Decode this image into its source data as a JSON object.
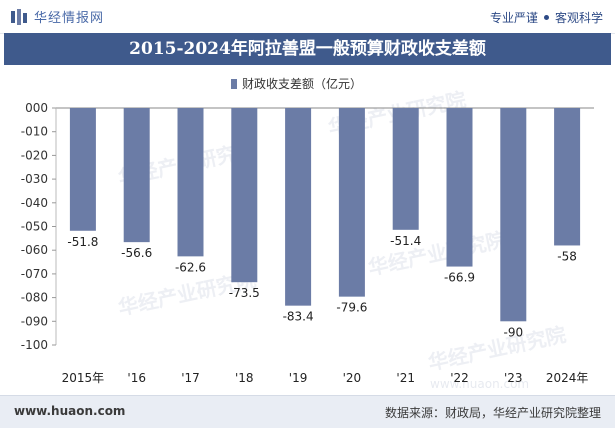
{
  "header": {
    "logo_text": "华经情报网",
    "tagline_left": "专业严谨",
    "tagline_right": "客观科学"
  },
  "title": "2015-2024年阿拉善盟一般预算财政收支差额",
  "watermarks": [
    "华经产业研究院",
    "www.huaon.com"
  ],
  "footer": {
    "website": "www.huaon.com",
    "source": "数据来源：财政局，华经产业研究院整理"
  },
  "colors": {
    "bar": "#6b7ca6",
    "title_bg": "#3f5a8c"
  },
  "chart_data": {
    "type": "bar",
    "categories": [
      "2015年",
      "'16",
      "'17",
      "'18",
      "'19",
      "'20",
      "'21",
      "'22",
      "'23",
      "2024年"
    ],
    "series": [
      {
        "name": "财政收支差额（亿元）",
        "values": [
          -51.8,
          -56.6,
          -62.6,
          -73.5,
          -83.4,
          -79.6,
          -51.4,
          -66.9,
          -90,
          -58
        ]
      }
    ],
    "value_labels": [
      "-51.8",
      "-56.6",
      "-62.6",
      "-73.5",
      "-83.4",
      "-79.6",
      "-51.4",
      "-66.9",
      "-90",
      "-58"
    ],
    "y_ticks": [
      "000",
      "-010",
      "-020",
      "-030",
      "-040",
      "-050",
      "-060",
      "-070",
      "-080",
      "-090",
      "-100"
    ],
    "ylim": [
      -100,
      0
    ],
    "legend_position": "top-center",
    "grid": false
  }
}
